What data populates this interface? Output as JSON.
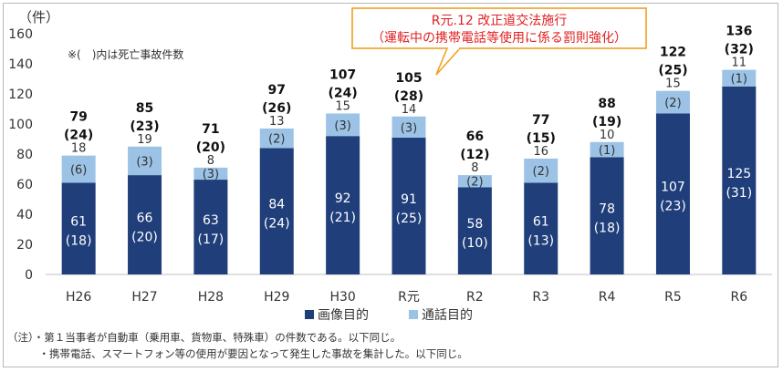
{
  "chart_data": {
    "type": "bar",
    "stacked": true,
    "categories": [
      "H26",
      "H27",
      "H28",
      "H29",
      "H30",
      "R元",
      "R2",
      "R3",
      "R4",
      "R5",
      "R6"
    ],
    "series": [
      {
        "name": "画像目的",
        "color": "#1f3e7a",
        "values": [
          61,
          66,
          63,
          84,
          92,
          91,
          58,
          61,
          78,
          107,
          125
        ],
        "fatal": [
          18,
          20,
          17,
          24,
          21,
          25,
          10,
          13,
          18,
          23,
          31
        ]
      },
      {
        "name": "通話目的",
        "color": "#9cc3e6",
        "values": [
          18,
          19,
          8,
          13,
          15,
          14,
          8,
          16,
          10,
          15,
          11
        ],
        "fatal": [
          6,
          3,
          3,
          2,
          3,
          3,
          2,
          2,
          1,
          2,
          1
        ]
      }
    ],
    "totals": [
      79,
      85,
      71,
      97,
      107,
      105,
      66,
      77,
      88,
      122,
      136
    ],
    "total_fatal": [
      24,
      23,
      20,
      26,
      24,
      28,
      12,
      15,
      19,
      25,
      32
    ],
    "ylim": [
      0,
      160
    ],
    "yticks": [
      0,
      20,
      40,
      60,
      80,
      100,
      120,
      140,
      160
    ],
    "ylabel": "（件）",
    "note": "※(　)内は死亡事故件数",
    "callout": {
      "line1": "R元.12  改正道交法施行",
      "line2": "（運転中の携帯電話等使用に係る罰則強化）",
      "border_color": "#f0a020",
      "text_color": "#e02020"
    },
    "legend_position": "bottom-center"
  },
  "footnotes": [
    "（注）・第１当事者が自動車（乗用車、貨物車、特殊車）の件数である。以下同じ。",
    "　　　・携帯電話、スマートフォン等の使用が要因となって発生した事故を集計した。以下同じ。"
  ]
}
